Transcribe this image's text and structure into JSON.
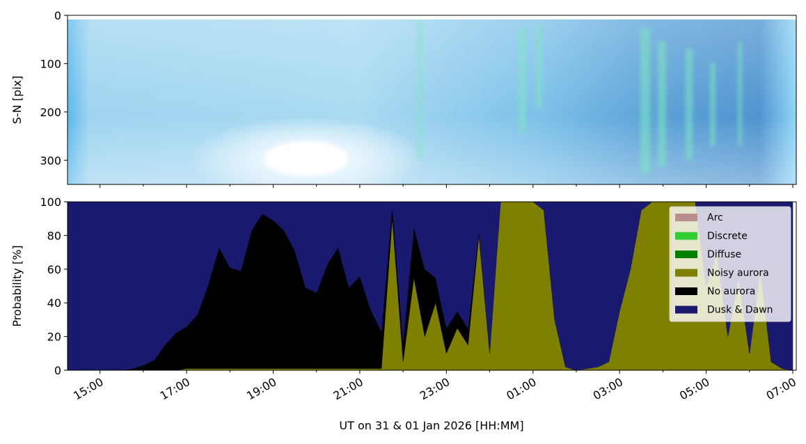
{
  "chart_data": [
    {
      "type": "image",
      "ylabel": "S-N [pix]",
      "ylim": [
        350,
        0
      ],
      "yticks": [
        0,
        100,
        200,
        300
      ],
      "xlim": [
        14.25,
        31.08
      ],
      "xticks": [
        15,
        17,
        19,
        21,
        23,
        25,
        27,
        29,
        31
      ],
      "xminorticks": [
        16,
        18,
        20,
        22,
        24,
        26,
        28,
        30
      ]
    },
    {
      "type": "stacked_area",
      "ylabel": "Probability [%]",
      "xlabel": "UT on 31 & 01 Jan 2026 [HH:MM]",
      "ylim": [
        0,
        100
      ],
      "yticks": [
        0,
        20,
        40,
        60,
        80,
        100
      ],
      "xlim": [
        14.25,
        31.08
      ],
      "xticks": [
        {
          "value": 15,
          "label": "15:00"
        },
        {
          "value": 17,
          "label": "17:00"
        },
        {
          "value": 19,
          "label": "19:00"
        },
        {
          "value": 21,
          "label": "21:00"
        },
        {
          "value": 23,
          "label": "23:00"
        },
        {
          "value": 25,
          "label": "01:00"
        },
        {
          "value": 27,
          "label": "03:00"
        },
        {
          "value": 29,
          "label": "05:00"
        },
        {
          "value": 31,
          "label": "07:00"
        }
      ],
      "xminorticks": [
        16,
        18,
        20,
        22,
        24,
        26,
        28,
        30
      ],
      "legend": "upper right",
      "x": [
        14.25,
        14.5,
        14.75,
        15,
        15.25,
        15.5,
        15.75,
        16,
        16.25,
        16.5,
        16.75,
        17,
        17.25,
        17.5,
        17.75,
        18,
        18.25,
        18.5,
        18.75,
        19,
        19.25,
        19.5,
        19.75,
        20,
        20.25,
        20.5,
        20.75,
        21,
        21.25,
        21.5,
        21.75,
        22,
        22.25,
        22.5,
        22.75,
        23,
        23.25,
        23.5,
        23.75,
        24,
        24.25,
        24.5,
        24.75,
        25,
        25.25,
        25.5,
        25.75,
        26,
        26.25,
        26.5,
        26.75,
        27,
        27.25,
        27.5,
        27.75,
        28,
        28.25,
        28.5,
        28.75,
        29,
        29.25,
        29.5,
        29.75,
        30,
        30.25,
        30.5,
        30.75,
        31
      ],
      "series": [
        {
          "name": "Arc",
          "color": "#bc8f8f",
          "values": [
            0,
            0,
            0,
            0,
            0,
            0,
            0,
            0,
            0,
            0,
            0,
            0,
            0,
            0,
            0,
            0,
            0,
            0,
            0,
            0,
            0,
            0,
            0,
            0,
            0,
            0,
            0,
            0,
            0,
            0,
            0,
            0,
            0,
            0,
            0,
            0,
            0,
            0,
            0,
            0,
            0,
            0,
            0,
            0,
            0,
            0,
            0,
            0,
            0,
            0,
            0,
            0,
            0,
            0,
            0,
            0,
            0,
            0,
            0,
            0,
            0,
            0,
            0,
            0,
            0,
            0,
            0,
            0
          ]
        },
        {
          "name": "Discrete",
          "color": "#32cd32",
          "values": [
            0,
            0,
            0,
            0,
            0,
            0,
            0,
            0,
            0,
            0,
            0,
            0,
            0,
            0,
            0,
            0,
            0,
            0,
            0,
            0,
            0,
            0,
            0,
            0,
            0,
            0,
            0,
            0,
            0,
            0,
            0,
            0,
            0,
            0,
            0,
            0,
            0,
            0,
            0,
            0,
            0,
            0,
            0,
            0,
            0,
            0,
            0,
            0,
            0,
            0,
            0,
            0,
            0,
            0,
            0,
            0,
            0,
            0,
            0,
            0,
            0,
            0,
            0,
            0,
            0,
            0,
            0,
            0
          ]
        },
        {
          "name": "Diffuse",
          "color": "#008000",
          "values": [
            0,
            0,
            0,
            0,
            0,
            0,
            0,
            0,
            0,
            0,
            0,
            0,
            0,
            0,
            0,
            0,
            0,
            0,
            0,
            0,
            0,
            0,
            0,
            0,
            0,
            0,
            0,
            0,
            0,
            0,
            0,
            0,
            0,
            0,
            0,
            0,
            0,
            0,
            0,
            0,
            0,
            0,
            0,
            0,
            0,
            0,
            0,
            0,
            0,
            0,
            0,
            0,
            0,
            0,
            0,
            0,
            0,
            0,
            0,
            0,
            0,
            0,
            0,
            0,
            0,
            0,
            0,
            0
          ]
        },
        {
          "name": "Noisy aurora",
          "color": "#808000",
          "values": [
            0,
            0,
            0,
            0,
            0,
            0,
            0,
            0,
            0,
            0,
            0,
            1,
            1,
            1,
            1,
            1,
            1,
            1,
            1,
            1,
            1,
            1,
            1,
            1,
            1,
            1,
            1,
            1,
            1,
            1,
            90,
            5,
            55,
            20,
            40,
            10,
            25,
            15,
            80,
            10,
            100,
            100,
            100,
            100,
            95,
            30,
            2,
            0,
            1,
            2,
            5,
            35,
            60,
            95,
            100,
            100,
            100,
            100,
            100,
            50,
            70,
            20,
            55,
            10,
            60,
            5,
            1,
            0
          ]
        },
        {
          "name": "No aurora",
          "color": "#000000",
          "values": [
            0,
            0,
            0,
            0,
            0,
            0,
            1,
            3,
            6,
            15,
            22,
            25,
            32,
            50,
            72,
            60,
            58,
            82,
            92,
            88,
            82,
            70,
            48,
            45,
            62,
            72,
            48,
            55,
            35,
            22,
            8,
            12,
            30,
            40,
            15,
            15,
            10,
            10,
            3,
            2,
            0,
            0,
            0,
            0,
            0,
            0,
            0,
            0,
            0,
            0,
            0,
            0,
            0,
            0,
            0,
            0,
            0,
            0,
            0,
            0,
            0,
            0,
            0,
            0,
            0,
            0,
            0,
            0
          ]
        },
        {
          "name": "Dusk & Dawn",
          "color": "#191970",
          "values": [
            100,
            100,
            100,
            100,
            100,
            100,
            99,
            97,
            94,
            85,
            78,
            74,
            67,
            49,
            27,
            39,
            41,
            17,
            7,
            11,
            17,
            29,
            51,
            54,
            37,
            27,
            51,
            44,
            64,
            77,
            2,
            83,
            15,
            40,
            45,
            75,
            65,
            75,
            17,
            88,
            0,
            0,
            0,
            0,
            5,
            70,
            98,
            100,
            99,
            98,
            95,
            65,
            40,
            5,
            0,
            0,
            0,
            0,
            0,
            50,
            30,
            80,
            45,
            90,
            40,
            95,
            99,
            100
          ]
        }
      ]
    }
  ]
}
